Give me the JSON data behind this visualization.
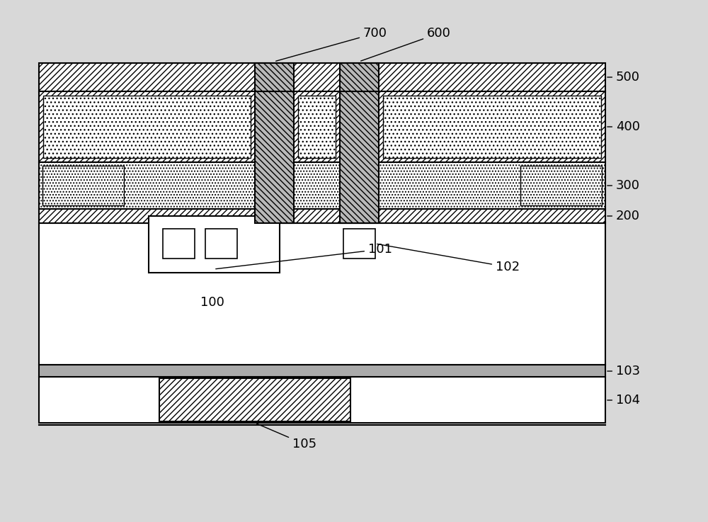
{
  "fig_width": 10.0,
  "fig_height": 7.37,
  "dpi": 100,
  "bg_color": "#d8d8d8"
}
